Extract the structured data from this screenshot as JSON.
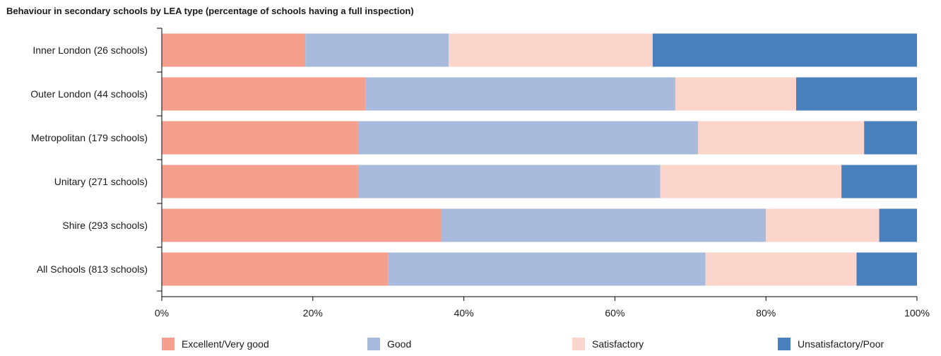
{
  "chart_data": {
    "type": "bar",
    "orientation": "horizontal",
    "stacked": true,
    "title": "Behaviour in secondary schools by LEA type (percentage of schools having a full inspection)",
    "categories": [
      "Inner London (26 schools)",
      "Outer London (44 schools)",
      "Metropolitan (179 schools)",
      "Unitary (271 schools)",
      "Shire (293 schools)",
      "All Schools (813 schools)"
    ],
    "series": [
      {
        "name": "Excellent/Very good",
        "color": "#f4a08c",
        "values": [
          19,
          27,
          26,
          26,
          37,
          30
        ]
      },
      {
        "name": "Good",
        "color": "#a9bbdd",
        "values": [
          19,
          41,
          45,
          40,
          43,
          42
        ]
      },
      {
        "name": "Satisfactory",
        "color": "#fbd5cc",
        "values": [
          27,
          16,
          22,
          24,
          15,
          20
        ]
      },
      {
        "name": "Unsatisfactory/Poor",
        "color": "#4a7fbd",
        "values": [
          35,
          16,
          7,
          10,
          5,
          8
        ]
      }
    ],
    "xlim": [
      0,
      100
    ],
    "x_ticks": [
      0,
      20,
      40,
      60,
      80,
      100
    ],
    "x_tick_labels": [
      "0%",
      "20%",
      "40%",
      "60%",
      "80%",
      "100%"
    ],
    "grid": false,
    "legend_position": "bottom"
  }
}
